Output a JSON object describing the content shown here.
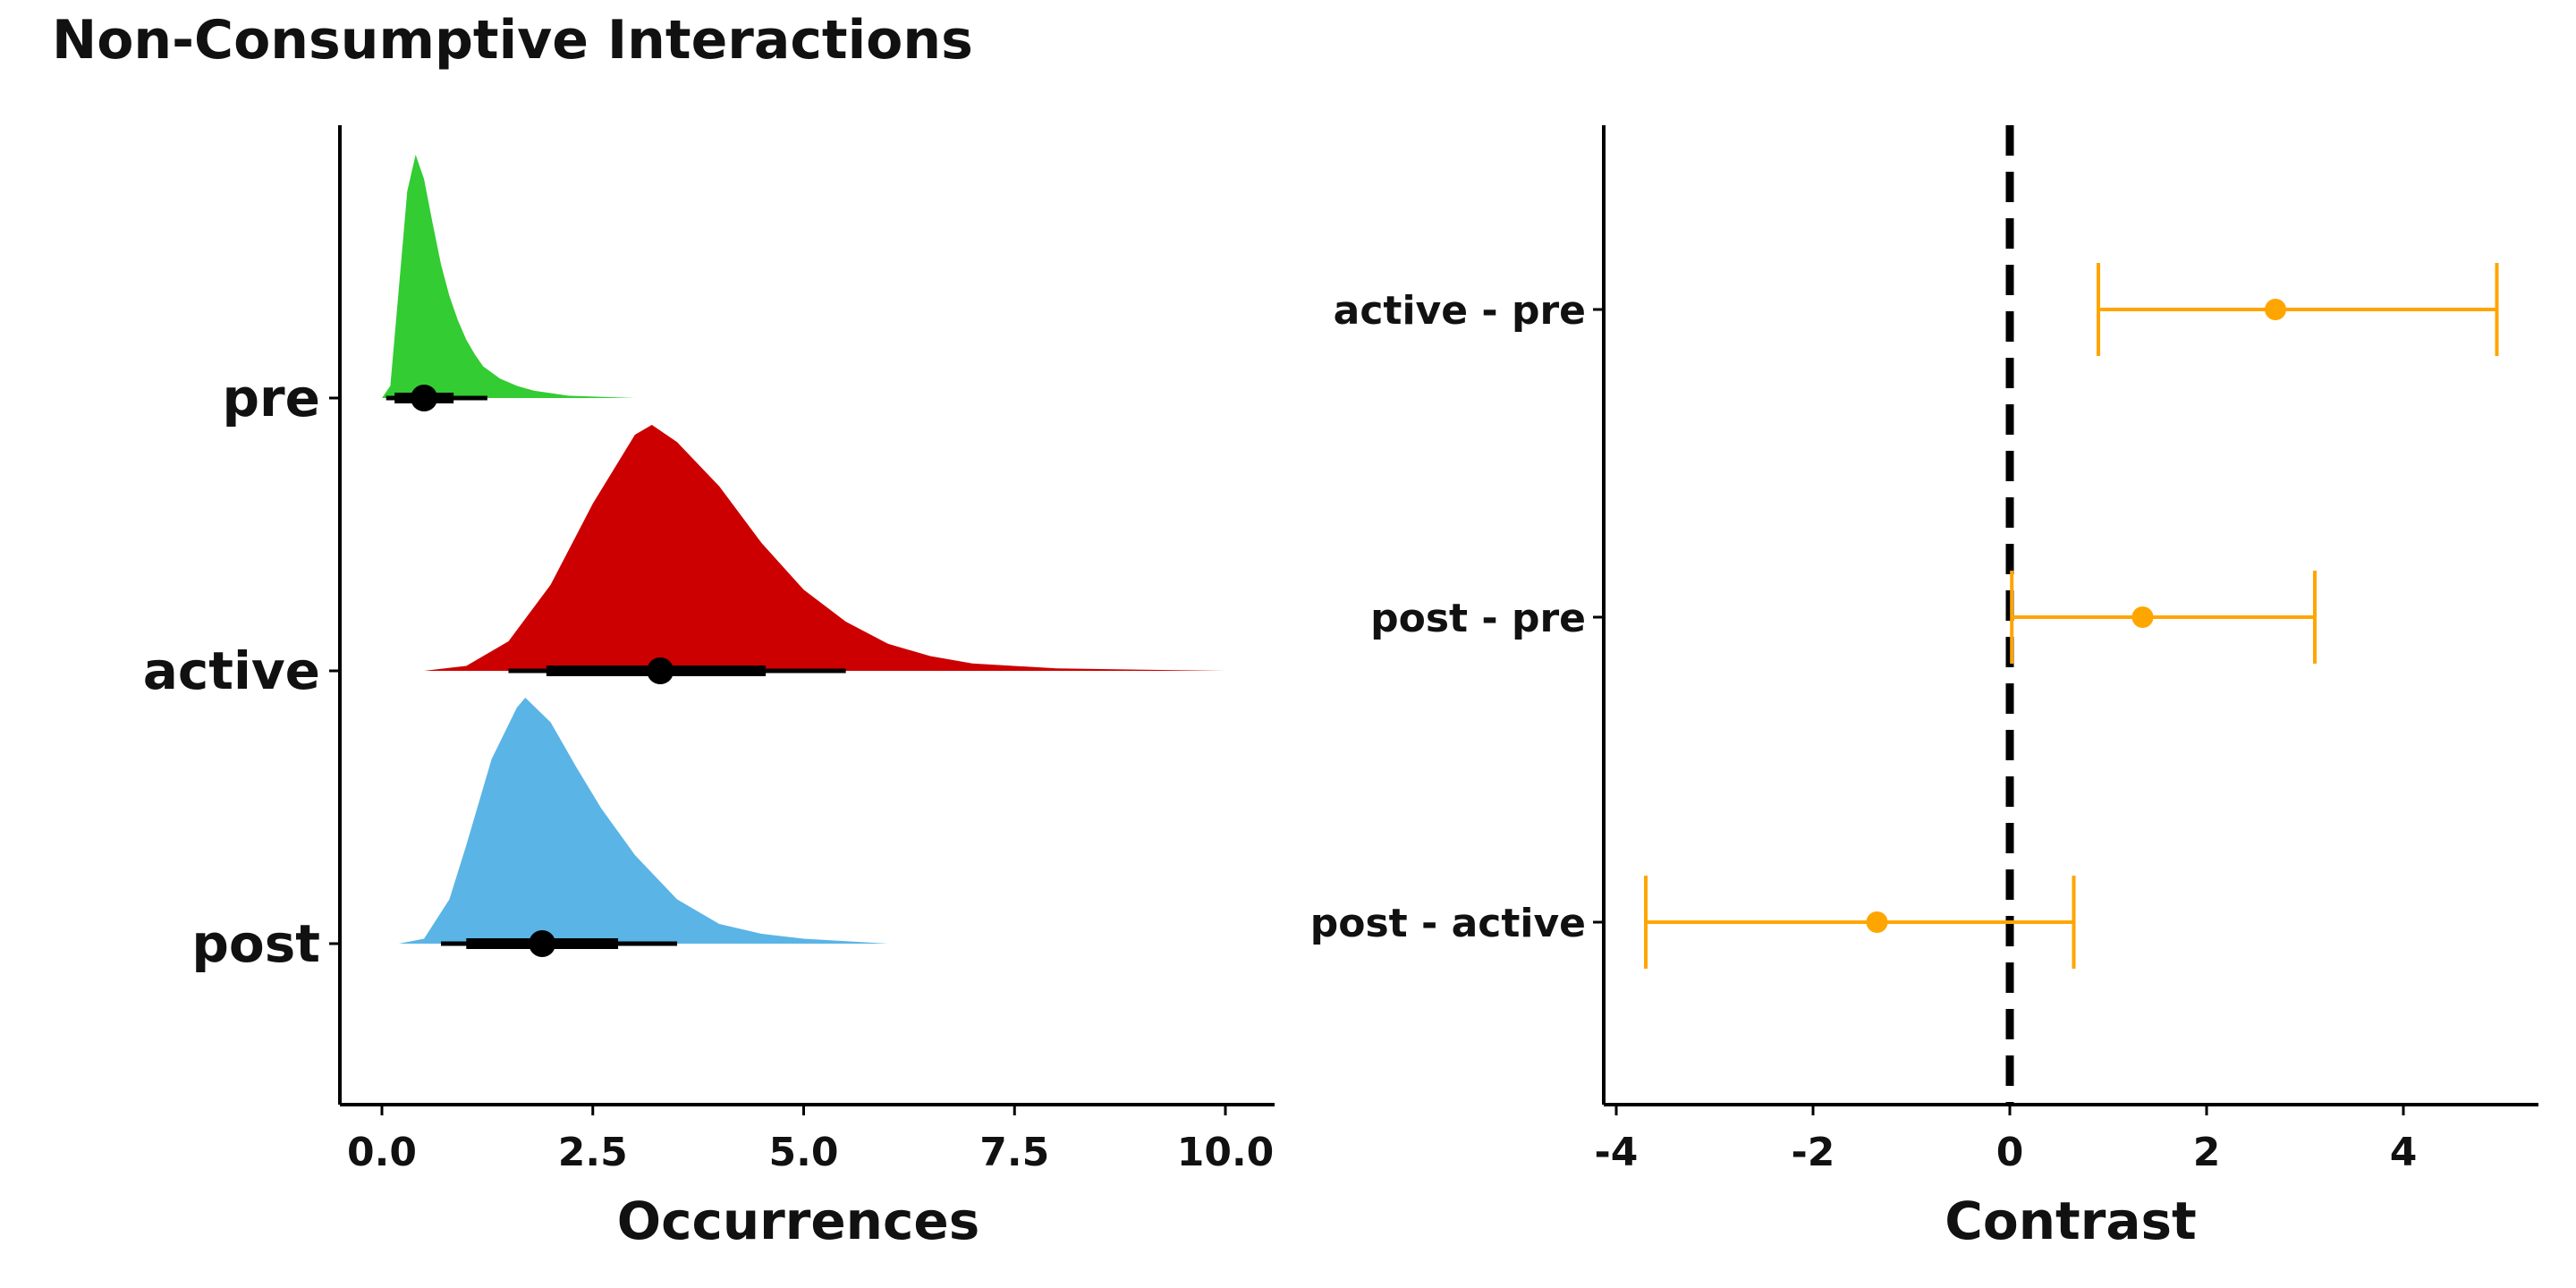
{
  "title": "Non-Consumptive Interactions",
  "chart_data": [
    {
      "type": "area",
      "subtype": "halfeye",
      "xlabel": "Occurrences",
      "ylabel": "",
      "xlim": [
        0,
        10.5
      ],
      "xticks": [
        0,
        2.5,
        5,
        7.5,
        10
      ],
      "xtick_labels": [
        "0.0",
        "2.5",
        "5.0",
        "7.5",
        "10.0"
      ],
      "categories": [
        "pre",
        "active",
        "post"
      ],
      "series": [
        {
          "name": "pre",
          "color": "#33cc33",
          "point": 0.5,
          "interval_66": [
            0.15,
            0.85
          ],
          "interval_95": [
            0.05,
            1.25
          ],
          "density": [
            [
              0.0,
              0
            ],
            [
              0.1,
              0.05
            ],
            [
              0.2,
              0.45
            ],
            [
              0.3,
              0.85
            ],
            [
              0.4,
              1.0
            ],
            [
              0.5,
              0.9
            ],
            [
              0.6,
              0.72
            ],
            [
              0.7,
              0.55
            ],
            [
              0.8,
              0.42
            ],
            [
              0.9,
              0.32
            ],
            [
              1.0,
              0.24
            ],
            [
              1.1,
              0.18
            ],
            [
              1.2,
              0.13
            ],
            [
              1.4,
              0.08
            ],
            [
              1.6,
              0.05
            ],
            [
              1.8,
              0.03
            ],
            [
              2.2,
              0.01
            ],
            [
              3.0,
              0.0
            ]
          ]
        },
        {
          "name": "active",
          "color": "#cc0000",
          "point": 3.3,
          "interval_66": [
            1.95,
            4.55
          ],
          "interval_95": [
            1.5,
            5.5
          ],
          "density": [
            [
              0.5,
              0
            ],
            [
              1.0,
              0.02
            ],
            [
              1.5,
              0.12
            ],
            [
              2.0,
              0.35
            ],
            [
              2.5,
              0.68
            ],
            [
              3.0,
              0.96
            ],
            [
              3.2,
              1.0
            ],
            [
              3.5,
              0.93
            ],
            [
              4.0,
              0.75
            ],
            [
              4.5,
              0.52
            ],
            [
              5.0,
              0.33
            ],
            [
              5.5,
              0.2
            ],
            [
              6.0,
              0.11
            ],
            [
              6.5,
              0.06
            ],
            [
              7.0,
              0.03
            ],
            [
              8.0,
              0.01
            ],
            [
              10.0,
              0.0
            ]
          ]
        },
        {
          "name": "post",
          "color": "#5ab4e6",
          "point": 1.9,
          "interval_66": [
            1.0,
            2.8
          ],
          "interval_95": [
            0.7,
            3.5
          ],
          "density": [
            [
              0.2,
              0
            ],
            [
              0.5,
              0.02
            ],
            [
              0.8,
              0.18
            ],
            [
              1.0,
              0.4
            ],
            [
              1.3,
              0.75
            ],
            [
              1.6,
              0.96
            ],
            [
              1.7,
              1.0
            ],
            [
              2.0,
              0.9
            ],
            [
              2.3,
              0.72
            ],
            [
              2.6,
              0.55
            ],
            [
              3.0,
              0.36
            ],
            [
              3.5,
              0.18
            ],
            [
              4.0,
              0.08
            ],
            [
              4.5,
              0.04
            ],
            [
              5.0,
              0.02
            ],
            [
              6.0,
              0.0
            ]
          ]
        }
      ]
    },
    {
      "type": "scatter",
      "subtype": "pointrange",
      "xlabel": "Contrast",
      "ylabel": "",
      "xlim": [
        -4.1,
        5.4
      ],
      "xticks": [
        -4,
        -2,
        0,
        2,
        4
      ],
      "xtick_labels": [
        "-4",
        "-2",
        "0",
        "2",
        "4"
      ],
      "reference_line": 0,
      "color": "#ffa500",
      "categories": [
        "active - pre",
        "post - pre",
        "post - active"
      ],
      "points": [
        {
          "label": "active - pre",
          "estimate": 2.7,
          "lower": 0.9,
          "upper": 4.95
        },
        {
          "label": "post - pre",
          "estimate": 1.35,
          "lower": 0.02,
          "upper": 3.1
        },
        {
          "label": "post - active",
          "estimate": -1.35,
          "lower": -3.7,
          "upper": 0.65
        }
      ]
    }
  ]
}
